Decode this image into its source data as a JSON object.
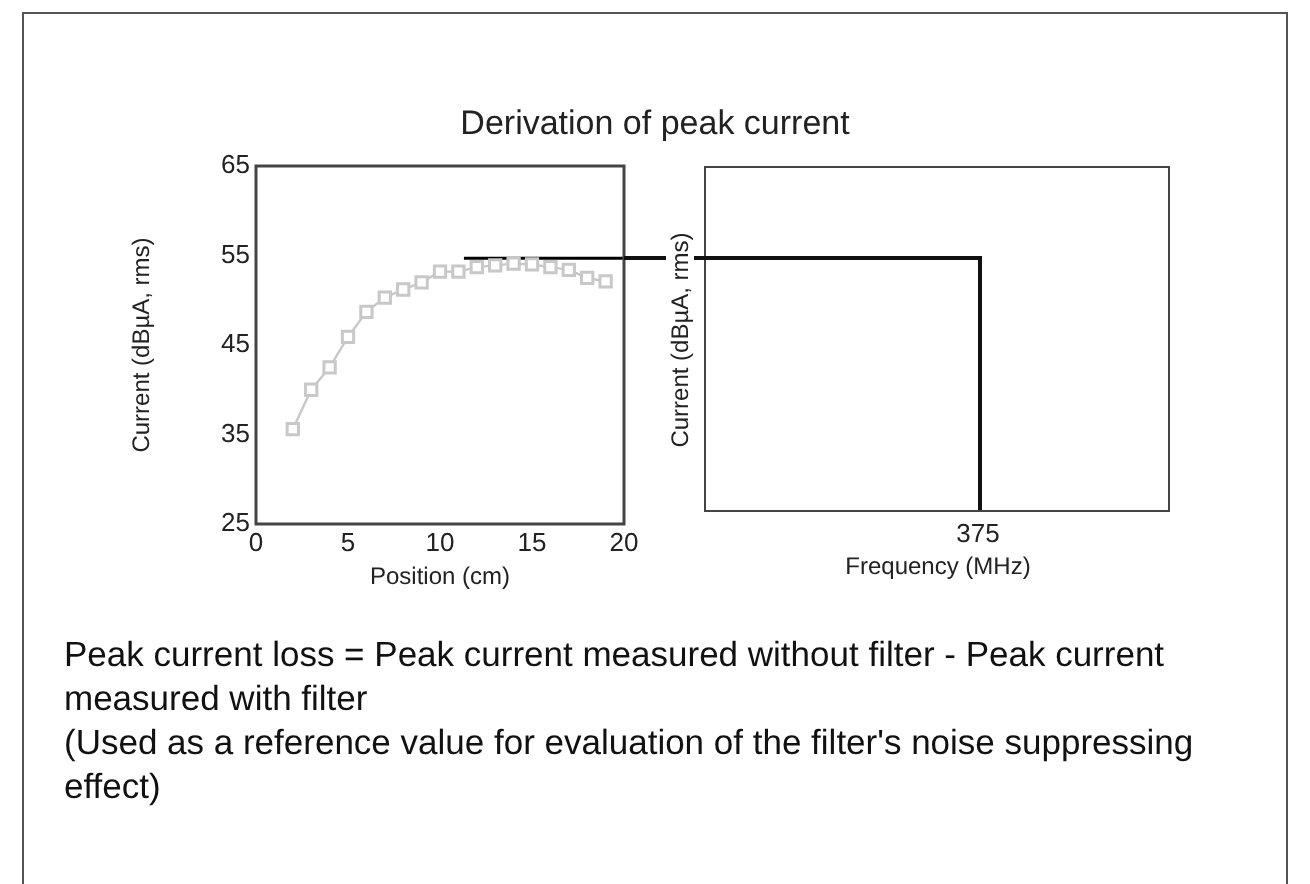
{
  "chart_data": [
    {
      "type": "line",
      "title": "Derivation of peak current",
      "xlabel": "Position (cm)",
      "ylabel": "Current (dBµA, rms)",
      "xlim": [
        0,
        20
      ],
      "xticks": [
        0,
        5,
        10,
        15,
        20
      ],
      "ylim": [
        25,
        65
      ],
      "yticks": [
        25,
        35,
        45,
        55,
        65
      ],
      "grid": false,
      "legend": false,
      "marker": "square",
      "series": [
        {
          "color": "#c8c8c8",
          "x": [
            2,
            3,
            4,
            5,
            6,
            7,
            8,
            9,
            10,
            11,
            12,
            13,
            14,
            15,
            16,
            17,
            18,
            19
          ],
          "values": [
            35.6,
            40,
            42.5,
            45.9,
            48.7,
            50.3,
            51.2,
            52,
            53.2,
            53.2,
            53.7,
            53.9,
            54.1,
            54,
            53.7,
            53.4,
            52.5,
            52.1
          ]
        },
        {
          "color": "#000000",
          "marker": "none",
          "x": [
            11.3,
            20
          ],
          "values": [
            54.7,
            54.7
          ]
        }
      ],
      "annotations": [
        "Peak current loss = Peak current measured without filter - Peak current measured with filter",
        "(Used as a reference value for evaluation of the filter's noise suppressing effect)"
      ]
    },
    {
      "type": "other",
      "xlabel": "Frequency (MHz)",
      "ylabel": "Current (dBµA, rms)",
      "annotations": [
        "375"
      ]
    }
  ]
}
